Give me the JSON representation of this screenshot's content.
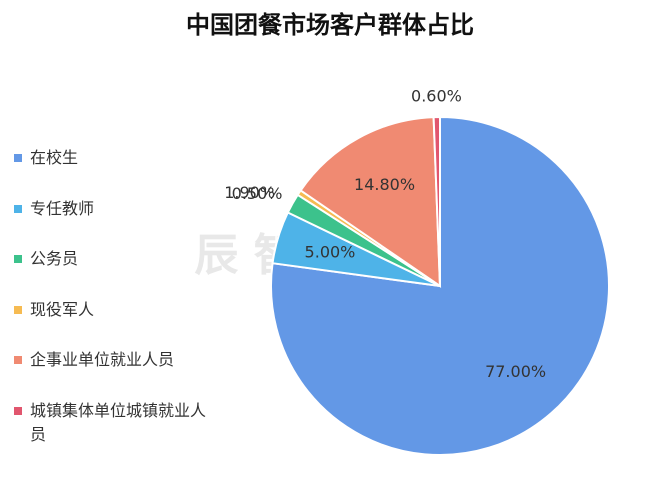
{
  "chart_data": {
    "type": "pie",
    "title": "中国团餐市场客户群体占比",
    "watermark": "辰 智 大 数 据",
    "categories": [
      "在校生",
      "专任教师",
      "公务员",
      "现役军人",
      "企事业单位就业人员",
      "城镇集体单位城镇就业人员"
    ],
    "values": [
      77,
      5,
      1.9,
      0.5,
      14.8,
      0.6
    ],
    "value_labels": [
      "77.00%",
      "5.00%",
      "1.90%",
      "0.50%",
      "14.80%",
      "0.60%"
    ],
    "colors": [
      "#6398e6",
      "#4eb3e8",
      "#3cc28c",
      "#f6bb52",
      "#f08a72",
      "#e1566e"
    ],
    "legend": "left"
  }
}
